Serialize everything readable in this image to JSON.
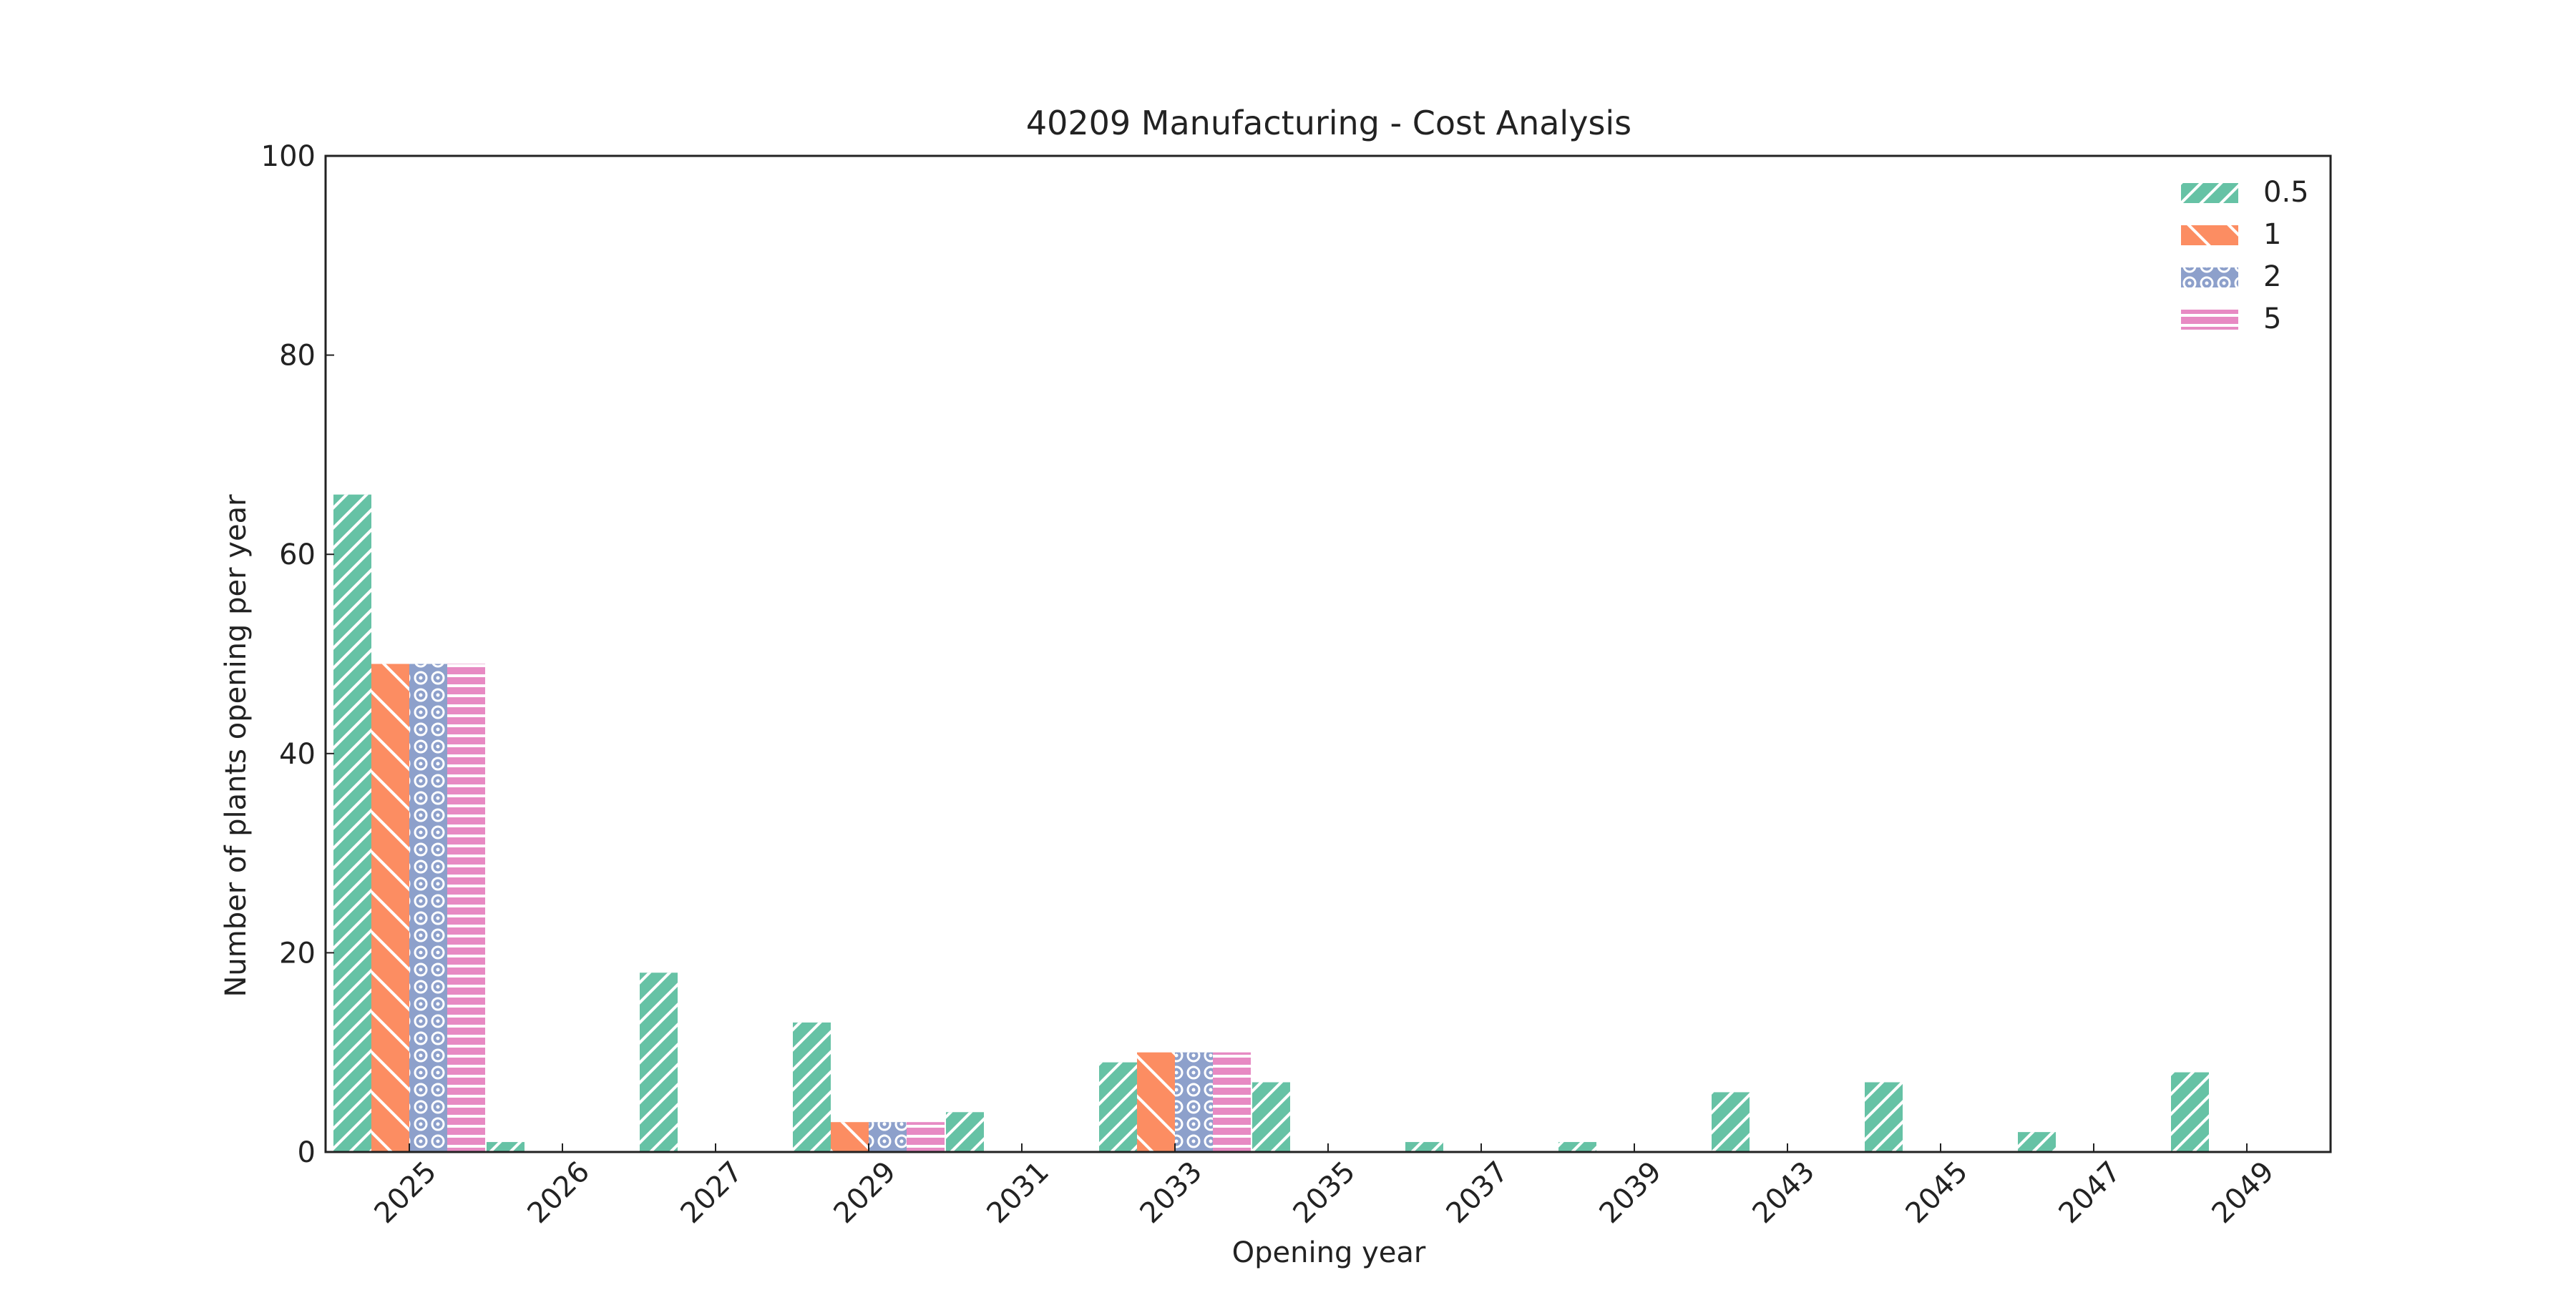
{
  "chart_data": {
    "type": "bar",
    "title": "40209 Manufacturing - Cost Analysis",
    "xlabel": "Opening year",
    "ylabel": "Number of plants opening per year",
    "ylim": [
      0,
      100
    ],
    "yticks": [
      0,
      20,
      40,
      60,
      80,
      100
    ],
    "grid": false,
    "legend_position": "top-right",
    "categories": [
      "2025",
      "2026",
      "2027",
      "2029",
      "2031",
      "2033",
      "2035",
      "2037",
      "2039",
      "2043",
      "2045",
      "2047",
      "2049"
    ],
    "series": [
      {
        "name": "0.5",
        "color": "#66c2a5",
        "pattern": "diagonal-forward",
        "values": [
          66,
          1,
          18,
          13,
          4,
          9,
          7,
          1,
          1,
          6,
          7,
          2,
          8
        ]
      },
      {
        "name": "1",
        "color": "#fc8d62",
        "pattern": "diagonal-back",
        "values": [
          49,
          0,
          0,
          3,
          0,
          10,
          0,
          0,
          0,
          0,
          0,
          0,
          0
        ]
      },
      {
        "name": "2",
        "color": "#8da0cb",
        "pattern": "circles",
        "values": [
          49,
          0,
          0,
          3,
          0,
          10,
          0,
          0,
          0,
          0,
          0,
          0,
          0
        ]
      },
      {
        "name": "5",
        "color": "#e78ac3",
        "pattern": "horizontal",
        "values": [
          49,
          0,
          0,
          3,
          0,
          10,
          0,
          0,
          0,
          0,
          0,
          0,
          0
        ]
      }
    ]
  }
}
